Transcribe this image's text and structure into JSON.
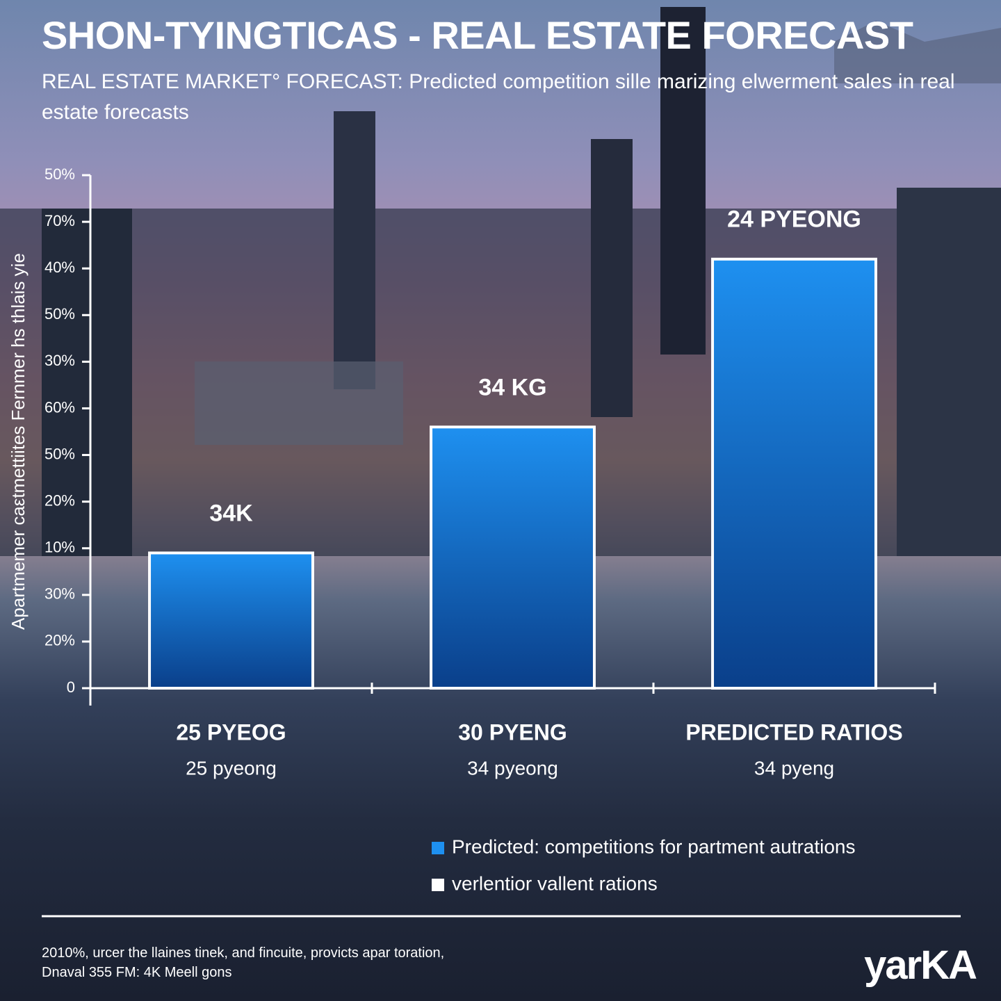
{
  "chart_data": {
    "type": "bar",
    "title": "SHON-TYINGTICAS - REAL ESTATE FORECAST",
    "subtitle": "REAL ESTATE MARKET° FORECAST: Predicted competition sille marizing elwerment sales in real estate forecasts",
    "y_label": "Apartmemer caεtmettiites Fernmer hs thlais yie",
    "categories": [
      "25 PYEOG",
      "30 PYENG",
      "PREDICTED RATIOS"
    ],
    "sublabels": [
      "25 pyeong",
      "34 pyeong",
      "34 pyeng"
    ],
    "bar_labels": [
      "34K",
      "34 KG",
      "24 PYEONG"
    ],
    "series": [
      {
        "name": "Predicted: competitions for partment autrations",
        "color": "#1e90f0",
        "values": [
          2.9,
          5.6,
          9.2
        ]
      }
    ],
    "legend": [
      {
        "name": "Predicted: competitions for partment autrations",
        "color": "#1e90f0"
      },
      {
        "name": "verlentior vallent rations",
        "color": "#ffffff"
      }
    ],
    "ylim": [
      0,
      11
    ],
    "yticks": [
      0,
      {
        "value": 1,
        "label": "20%"
      },
      {
        "value": 2,
        "label": "30%"
      },
      {
        "value": 3,
        "label": "10%"
      },
      {
        "value": 4,
        "label": "20%"
      },
      {
        "value": 5,
        "label": "50%"
      },
      {
        "value": 6,
        "label": "60%"
      },
      {
        "value": 7,
        "label": "30%"
      },
      {
        "value": 8,
        "label": "50%"
      },
      {
        "value": 9,
        "label": "40%"
      },
      {
        "value": 10,
        "label": "70%"
      },
      {
        "value": 11,
        "label": "50%"
      }
    ],
    "footer": [
      "2010%, urcer the llaines tinek, and fincuite, provicts apar toration,",
      "Dnaval 355 FM: 4K Meell gons"
    ],
    "logo": "yarKA"
  }
}
